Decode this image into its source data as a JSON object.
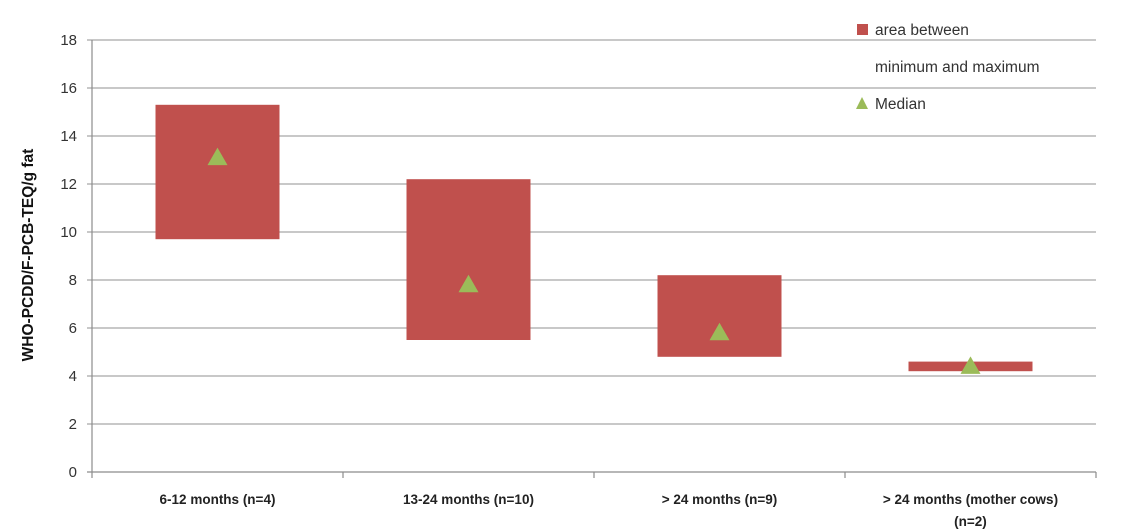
{
  "chart_data": {
    "type": "bar",
    "subtype": "floating-range-with-median",
    "ylabel": "WHO-PCDD/F-PCB-TEQ/g fat",
    "xlabel": "",
    "ylim": [
      0,
      18
    ],
    "yticks": [
      0,
      2,
      4,
      6,
      8,
      10,
      12,
      14,
      16,
      18
    ],
    "grid": true,
    "legend_position": "top-right",
    "categories": [
      [
        "6-12 months (n=4)"
      ],
      [
        "13-24 months (n=10)"
      ],
      [
        "> 24 months (n=9)"
      ],
      [
        "> 24 months (mother cows)",
        "(n=2)"
      ]
    ],
    "series": [
      {
        "name_lines": [
          "area between",
          "minimum and maximum"
        ],
        "kind": "range",
        "color": "#c0504d",
        "min": [
          9.7,
          5.5,
          4.8,
          4.2
        ],
        "max": [
          15.3,
          12.2,
          8.2,
          4.6
        ]
      },
      {
        "name_lines": [
          "Median"
        ],
        "kind": "marker",
        "color": "#9bbb59",
        "values": [
          13.1,
          7.8,
          5.8,
          4.4
        ]
      }
    ]
  }
}
